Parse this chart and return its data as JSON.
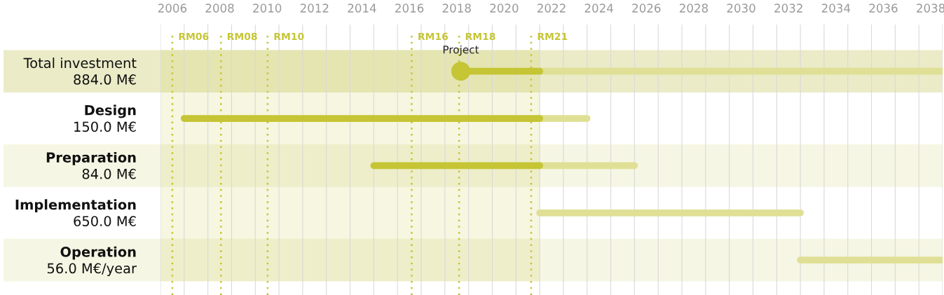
{
  "chart_data": {
    "type": "bar",
    "orientation": "horizontal",
    "categories": [
      "Total investment\n884.0 M€",
      "Design\n150.0 M€",
      "Preparation\n84.0 M€",
      "Implementation\n650.0 M€",
      "Operation\n56.0 M€/year"
    ],
    "series": [
      {
        "color": "#c5c535",
        "base": [
          2018.67,
          2007,
          2015,
          null,
          null
        ],
        "values": [
          3.33,
          15,
          7,
          null,
          null
        ]
      },
      {
        "color": "#dfe095",
        "base": [
          2022,
          2022,
          2022,
          2022,
          2033
        ],
        "values": [
          17,
          2,
          4,
          11,
          6
        ]
      },
      {
        "type": "scatter",
        "color": "#c5c535",
        "values": [
          2018.67,
          null,
          null,
          null,
          null
        ]
      }
    ],
    "annotations": [
      {
        "text": "Project",
        "x": 2018.67,
        "y": "Total investment\n884.0 M€"
      }
    ],
    "xlim": [
      2006,
      2039
    ],
    "xticks": [
      {
        "value": 2006.5,
        "label": "2006"
      },
      {
        "value": 2008.5,
        "label": "2008"
      },
      {
        "value": 2010.5,
        "label": "2010"
      },
      {
        "value": 2012.5,
        "label": "2012"
      },
      {
        "value": 2014.5,
        "label": "2014"
      },
      {
        "value": 2016.5,
        "label": "2016"
      },
      {
        "value": 2018.5,
        "label": "2018"
      },
      {
        "value": 2020.5,
        "label": "2020"
      },
      {
        "value": 2022.5,
        "label": "2022"
      },
      {
        "value": 2024.5,
        "label": "2024"
      },
      {
        "value": 2026.5,
        "label": "2026"
      },
      {
        "value": 2028.5,
        "label": "2028"
      },
      {
        "value": 2030.5,
        "label": "2030"
      },
      {
        "value": 2032.5,
        "label": "2032"
      },
      {
        "value": 2034.5,
        "label": "2034"
      },
      {
        "value": 2036.5,
        "label": "2036"
      },
      {
        "value": 2038.5,
        "label": "2038"
      }
    ],
    "ref_lines": [
      {
        "axis": "x",
        "value": 2006.5,
        "label": "RM06",
        "color": "#c5c535",
        "line_style": "dotted"
      },
      {
        "axis": "x",
        "value": 2008.55,
        "label": "RM08",
        "color": "#c5c535",
        "line_style": "dotted"
      },
      {
        "axis": "x",
        "value": 2010.52,
        "label": "RM10",
        "color": "#c5c535",
        "line_style": "dotted"
      },
      {
        "axis": "x",
        "value": 2016.6,
        "label": "RM16",
        "color": "#c5c535",
        "line_style": "dotted"
      },
      {
        "axis": "x",
        "value": 2018.6,
        "label": "RM18",
        "color": "#c5c535",
        "line_style": "dotted"
      },
      {
        "axis": "x",
        "value": 2021.64,
        "label": "RM21",
        "color": "#c5c535",
        "line_style": "dotted"
      }
    ],
    "bands": [
      {
        "axis": "x",
        "from": 2006,
        "to": 2022,
        "color": "#c5c535"
      },
      {
        "axis": "y",
        "from": "Total investment\n884.0 M€",
        "to": "Total investment\n884.0 M€",
        "color": "#ebebc8"
      },
      {
        "axis": "y",
        "from": "Preparation\n84.0 M€",
        "to": "Preparation\n84.0 M€",
        "color": "#f6f6e4"
      },
      {
        "axis": "y",
        "from": "Operation\n56.0 M€/year",
        "to": "Operation\n56.0 M€/year",
        "color": "#f6f6e4"
      }
    ]
  }
}
